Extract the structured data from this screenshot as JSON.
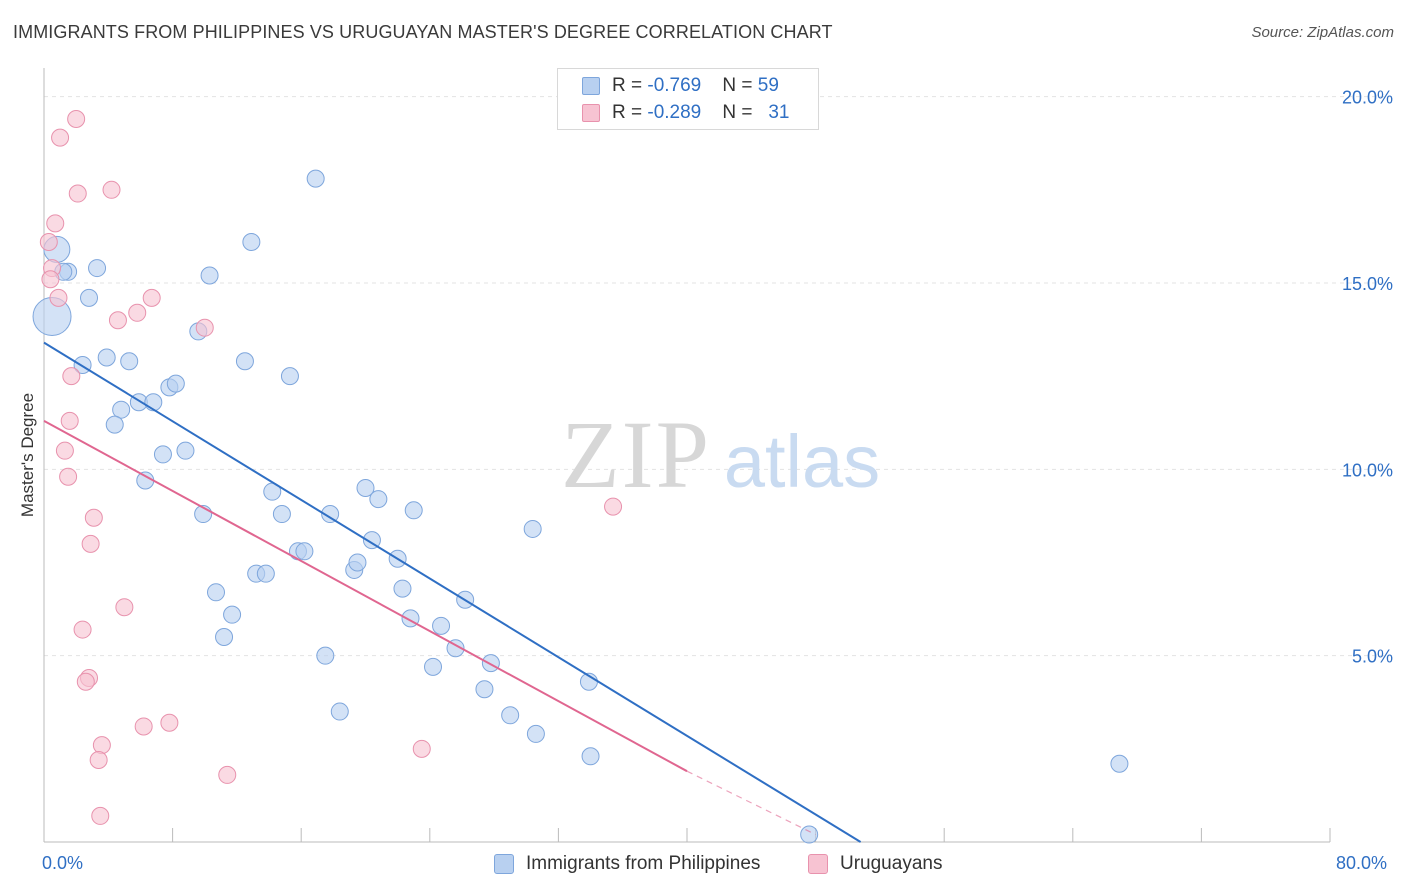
{
  "title": "IMMIGRANTS FROM PHILIPPINES VS URUGUAYAN MASTER'S DEGREE CORRELATION CHART",
  "source": "Source: ZipAtlas.com",
  "watermark": {
    "zip": "ZIP",
    "atlas": "atlas"
  },
  "colors": {
    "blue_fill": "#b8d0f0",
    "blue_stroke": "#7ea6dc",
    "blue_line": "#2f6fc4",
    "pink_fill": "#f7c3d2",
    "pink_stroke": "#e892ad",
    "pink_line": "#e06690",
    "grid": "#e3e3e3",
    "axis_text": "#2f6fc4"
  },
  "legend_top": {
    "rows": [
      {
        "r_label": "R = ",
        "r_value": "-0.769",
        "n_label": "N = ",
        "n_value": "59",
        "series": "blue"
      },
      {
        "r_label": "R = ",
        "r_value": "-0.289",
        "n_label": "N = ",
        "n_value": "31",
        "series": "pink"
      }
    ]
  },
  "legend_bottom": [
    {
      "label": "Immigrants from Philippines",
      "series": "blue"
    },
    {
      "label": "Uruguayans",
      "series": "pink"
    }
  ],
  "chart_data": {
    "type": "scatter",
    "title": "IMMIGRANTS FROM PHILIPPINES VS URUGUAYAN MASTER'S DEGREE CORRELATION CHART",
    "xlabel": "",
    "ylabel": "Master's Degree",
    "xlim": [
      0,
      80
    ],
    "ylim": [
      0,
      20.5
    ],
    "x_tick_labels": [
      "0.0%",
      "80.0%"
    ],
    "y_ticks": [
      5,
      10,
      15,
      20
    ],
    "y_tick_labels": [
      "5.0%",
      "10.0%",
      "15.0%",
      "20.0%"
    ],
    "grid": true,
    "legend": "top-center",
    "series": [
      {
        "name": "Immigrants from Philippines",
        "color": "blue",
        "regression": {
          "x0": 0,
          "y0": 13.4,
          "x1": 50.8,
          "y1": 0
        },
        "points": [
          {
            "x": 0.5,
            "y": 14.1,
            "size": "large"
          },
          {
            "x": 0.8,
            "y": 15.9,
            "size": "medium"
          },
          {
            "x": 1.5,
            "y": 15.3
          },
          {
            "x": 3.3,
            "y": 15.4
          },
          {
            "x": 2.8,
            "y": 14.6
          },
          {
            "x": 2.4,
            "y": 12.8
          },
          {
            "x": 3.9,
            "y": 13.0
          },
          {
            "x": 5.3,
            "y": 12.9
          },
          {
            "x": 4.8,
            "y": 11.6
          },
          {
            "x": 4.4,
            "y": 11.2
          },
          {
            "x": 5.9,
            "y": 11.8
          },
          {
            "x": 6.8,
            "y": 11.8
          },
          {
            "x": 7.8,
            "y": 12.2
          },
          {
            "x": 8.2,
            "y": 12.3
          },
          {
            "x": 7.4,
            "y": 10.4
          },
          {
            "x": 8.8,
            "y": 10.5
          },
          {
            "x": 6.3,
            "y": 9.7
          },
          {
            "x": 9.6,
            "y": 13.7
          },
          {
            "x": 10.3,
            "y": 15.2
          },
          {
            "x": 12.5,
            "y": 12.9
          },
          {
            "x": 12.9,
            "y": 16.1
          },
          {
            "x": 15.3,
            "y": 12.5
          },
          {
            "x": 16.9,
            "y": 17.8
          },
          {
            "x": 9.9,
            "y": 8.8
          },
          {
            "x": 14.2,
            "y": 9.4
          },
          {
            "x": 14.8,
            "y": 8.8
          },
          {
            "x": 10.7,
            "y": 6.7
          },
          {
            "x": 11.7,
            "y": 6.1
          },
          {
            "x": 11.2,
            "y": 5.5
          },
          {
            "x": 13.2,
            "y": 7.2
          },
          {
            "x": 13.8,
            "y": 7.2
          },
          {
            "x": 15.8,
            "y": 7.8
          },
          {
            "x": 16.2,
            "y": 7.8
          },
          {
            "x": 17.8,
            "y": 8.8
          },
          {
            "x": 17.5,
            "y": 5.0
          },
          {
            "x": 18.4,
            "y": 3.5
          },
          {
            "x": 19.3,
            "y": 7.3
          },
          {
            "x": 19.5,
            "y": 7.5
          },
          {
            "x": 20.0,
            "y": 9.5
          },
          {
            "x": 20.8,
            "y": 9.2
          },
          {
            "x": 20.4,
            "y": 8.1
          },
          {
            "x": 22.0,
            "y": 7.6
          },
          {
            "x": 22.3,
            "y": 6.8
          },
          {
            "x": 23.0,
            "y": 8.9
          },
          {
            "x": 22.8,
            "y": 6.0
          },
          {
            "x": 24.7,
            "y": 5.8
          },
          {
            "x": 24.2,
            "y": 4.7
          },
          {
            "x": 25.6,
            "y": 5.2
          },
          {
            "x": 26.2,
            "y": 6.5
          },
          {
            "x": 27.4,
            "y": 4.1
          },
          {
            "x": 27.8,
            "y": 4.8
          },
          {
            "x": 29.0,
            "y": 3.4
          },
          {
            "x": 30.6,
            "y": 2.9
          },
          {
            "x": 30.4,
            "y": 8.4
          },
          {
            "x": 33.9,
            "y": 4.3
          },
          {
            "x": 34.0,
            "y": 2.3
          },
          {
            "x": 47.6,
            "y": 0.2
          },
          {
            "x": 66.9,
            "y": 2.1
          },
          {
            "x": 1.2,
            "y": 15.3
          }
        ]
      },
      {
        "name": "Uruguayans",
        "color": "pink",
        "regression": {
          "x0": 0,
          "y0": 11.3,
          "x1": 40,
          "y1": 1.9,
          "dashed_to_x": 48,
          "dashed_to_y": 0.2
        },
        "points": [
          {
            "x": 2.0,
            "y": 19.4
          },
          {
            "x": 1.0,
            "y": 18.9
          },
          {
            "x": 2.1,
            "y": 17.4
          },
          {
            "x": 4.2,
            "y": 17.5
          },
          {
            "x": 0.7,
            "y": 16.6
          },
          {
            "x": 0.3,
            "y": 16.1
          },
          {
            "x": 0.5,
            "y": 15.4
          },
          {
            "x": 0.4,
            "y": 15.1
          },
          {
            "x": 0.9,
            "y": 14.6
          },
          {
            "x": 6.7,
            "y": 14.6
          },
          {
            "x": 5.8,
            "y": 14.2
          },
          {
            "x": 4.6,
            "y": 14.0
          },
          {
            "x": 10.0,
            "y": 13.8
          },
          {
            "x": 1.7,
            "y": 12.5
          },
          {
            "x": 1.6,
            "y": 11.3
          },
          {
            "x": 1.3,
            "y": 10.5
          },
          {
            "x": 1.5,
            "y": 9.8
          },
          {
            "x": 3.1,
            "y": 8.7
          },
          {
            "x": 2.9,
            "y": 8.0
          },
          {
            "x": 5.0,
            "y": 6.3
          },
          {
            "x": 2.4,
            "y": 5.7
          },
          {
            "x": 2.8,
            "y": 4.4
          },
          {
            "x": 2.6,
            "y": 4.3
          },
          {
            "x": 3.6,
            "y": 2.6
          },
          {
            "x": 3.4,
            "y": 2.2
          },
          {
            "x": 6.2,
            "y": 3.1
          },
          {
            "x": 7.8,
            "y": 3.2
          },
          {
            "x": 11.4,
            "y": 1.8
          },
          {
            "x": 3.5,
            "y": 0.7
          },
          {
            "x": 23.5,
            "y": 2.5
          },
          {
            "x": 35.4,
            "y": 9.0
          }
        ]
      }
    ]
  }
}
